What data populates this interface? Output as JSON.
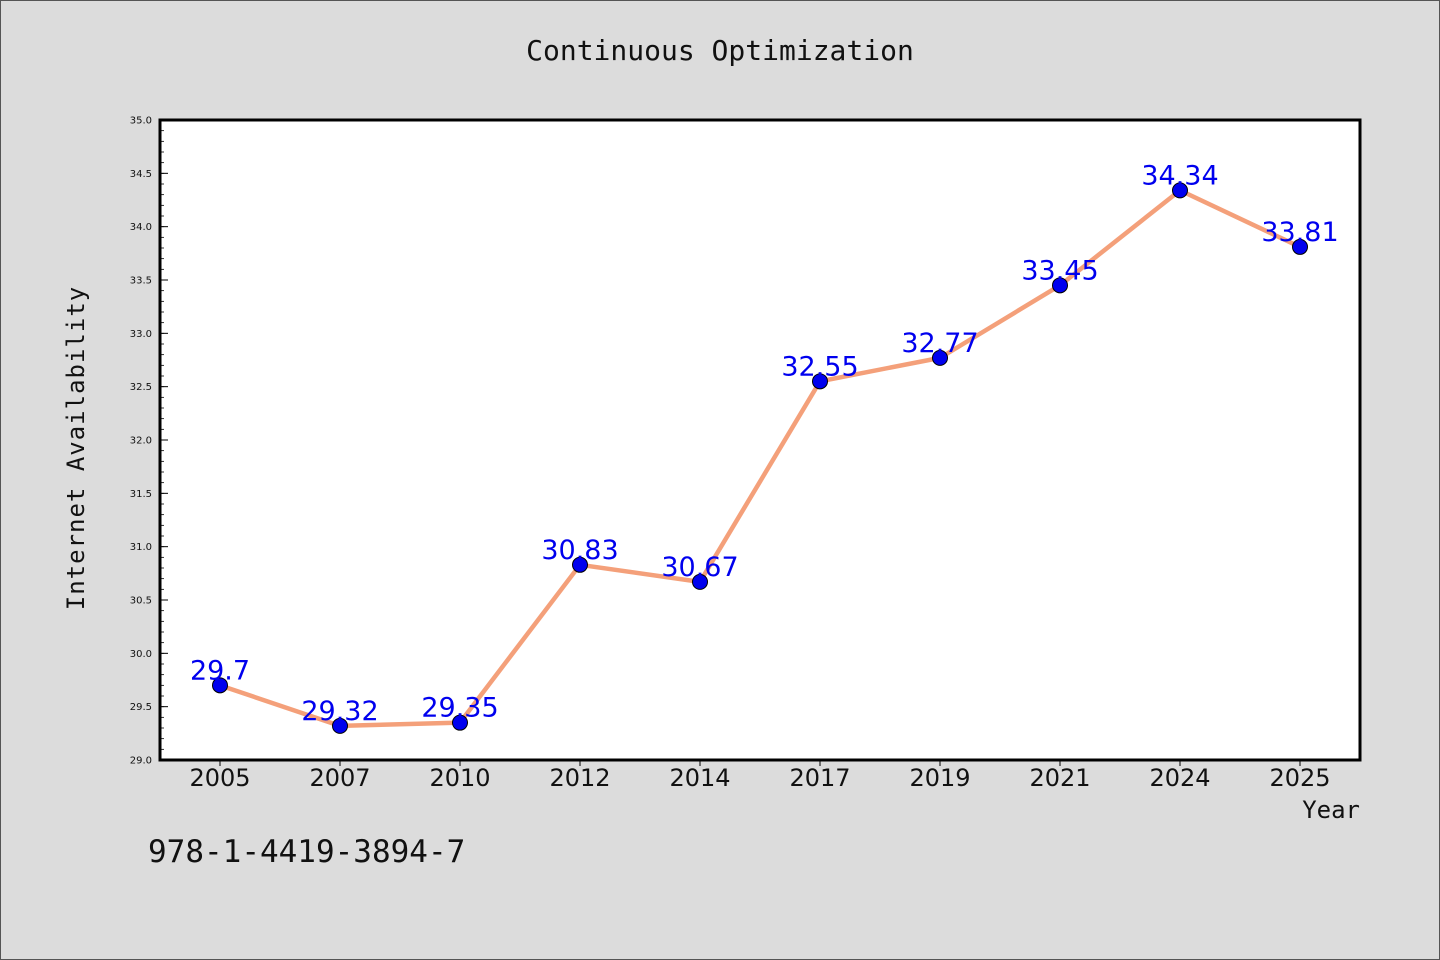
{
  "chart_data": {
    "type": "line",
    "title": "Continuous Optimization",
    "xlabel": "Year",
    "ylabel": "Internet Availability",
    "categories": [
      "2005",
      "2007",
      "2010",
      "2012",
      "2014",
      "2017",
      "2019",
      "2021",
      "2024",
      "2025"
    ],
    "values": [
      29.7,
      29.32,
      29.35,
      30.83,
      30.67,
      32.55,
      32.77,
      33.45,
      34.34,
      33.81
    ],
    "data_labels": [
      "29.7",
      "29.32",
      "29.35",
      "30.83",
      "30.67",
      "32.55",
      "32.77",
      "33.45",
      "34.34",
      "33.81"
    ],
    "ylim": [
      29.0,
      35.0
    ],
    "yticks": [
      "29.0",
      "29.5",
      "30.0",
      "30.5",
      "31.0",
      "31.5",
      "32.0",
      "32.5",
      "33.0",
      "33.5",
      "34.0",
      "34.5",
      "35.0"
    ],
    "grid": false,
    "legend": "none",
    "colors": {
      "line": "#f4a07a",
      "marker": "#0000ee",
      "label": "#0000ee",
      "background": "#dcdcdc",
      "plot_bg": "#ffffff"
    }
  },
  "footer": {
    "isbn": "978-1-4419-3894-7"
  }
}
